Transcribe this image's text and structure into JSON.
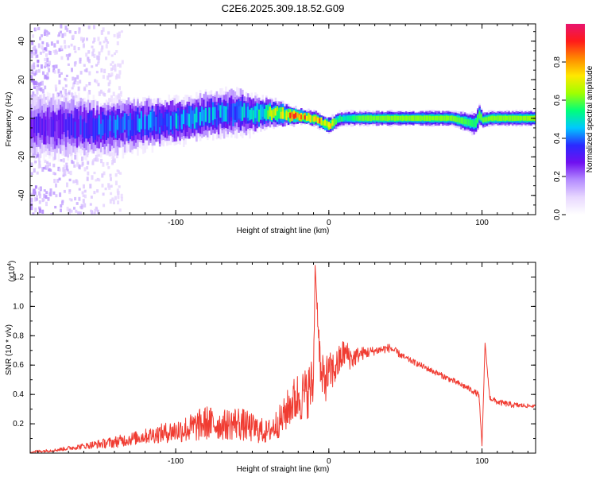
{
  "title": "C2E6.2025.309.18.52.G09",
  "colors": {
    "snr_line": "#f03c32",
    "colormap": [
      "#ffffff",
      "#e8d8ff",
      "#b48cff",
      "#7010f0",
      "#2a2aff",
      "#00c8ff",
      "#00ff7a",
      "#a0ff00",
      "#ffe800",
      "#ff8a00",
      "#ff1a1a",
      "#e8146e"
    ]
  },
  "chart_data": [
    {
      "type": "heatmap",
      "xlabel": "Height of straight line (km)",
      "ylabel": "Frequency (Hz)",
      "xlim": [
        -195,
        135
      ],
      "ylim": [
        -50,
        49
      ],
      "xticks": [
        -100,
        0,
        100
      ],
      "xtick_labels": [
        "-100",
        "0",
        "100"
      ],
      "yticks": [
        -40,
        -20,
        0,
        20,
        40
      ],
      "ytick_labels": [
        "-40",
        "-20",
        "0",
        "20",
        "40"
      ],
      "colorbar": {
        "label": "Normalized spectral amplitude",
        "range": [
          0,
          1
        ],
        "ticks": [
          0.0,
          0.2,
          0.4,
          0.6,
          0.8
        ],
        "tick_labels": [
          "0.0",
          "0.2",
          "0.4",
          "0.6",
          "0.8"
        ]
      },
      "ridge": {
        "x": [
          -185,
          -170,
          -150,
          -130,
          -110,
          -90,
          -75,
          -60,
          -50,
          -40,
          -30,
          -20,
          -10,
          -5,
          0,
          5,
          10,
          20,
          40,
          60,
          80,
          95,
          98,
          100,
          105,
          120,
          135
        ],
        "center_hz": [
          -4,
          -4,
          -5,
          -3,
          -2,
          0,
          2,
          3,
          2,
          3,
          2,
          1,
          0,
          -2,
          -4,
          -1,
          0,
          0,
          0,
          0,
          0,
          -3,
          2,
          -1,
          0,
          0,
          0
        ],
        "peak_amplitude": [
          0.3,
          0.35,
          0.4,
          0.42,
          0.45,
          0.45,
          0.45,
          0.45,
          0.5,
          0.6,
          0.75,
          0.92,
          0.75,
          0.8,
          0.85,
          0.55,
          0.5,
          0.6,
          0.62,
          0.62,
          0.62,
          0.55,
          0.6,
          0.6,
          0.62,
          0.62,
          0.64
        ],
        "spread_hz": [
          8,
          8,
          7,
          7,
          6,
          6,
          6,
          6,
          5,
          4,
          3,
          2,
          2,
          2,
          2,
          2,
          2,
          2,
          2,
          2,
          2,
          3,
          3,
          2,
          2,
          2,
          2
        ],
        "noise_extent_x": [
          -195,
          -135
        ]
      }
    },
    {
      "type": "line",
      "xlabel": "Height of straight line (km)",
      "ylabel": "SNR (10 * v/v)",
      "multiplier_label": "(x10",
      "multiplier_exponent": "4",
      "multiplier_close": ")",
      "xlim": [
        -195,
        135
      ],
      "ylim": [
        0,
        1.3
      ],
      "xticks": [
        -100,
        0,
        100
      ],
      "xtick_labels": [
        "-100",
        "0",
        "100"
      ],
      "yticks": [
        0.2,
        0.4,
        0.6,
        0.8,
        1.0,
        1.2
      ],
      "ytick_labels": [
        "0.2",
        "0.4",
        "0.6",
        "0.8",
        "1.0",
        "1.2"
      ],
      "series": [
        {
          "x": [
            -195,
            -180,
            -160,
            -140,
            -120,
            -100,
            -90,
            -80,
            -70,
            -60,
            -50,
            -40,
            -30,
            -25,
            -20,
            -15,
            -10,
            -9,
            -5,
            0,
            5,
            10,
            15,
            20,
            30,
            40,
            50,
            60,
            70,
            80,
            90,
            98,
            100,
            102,
            105,
            110,
            120,
            135
          ],
          "y": [
            0.01,
            0.02,
            0.05,
            0.08,
            0.12,
            0.16,
            0.18,
            0.22,
            0.2,
            0.22,
            0.18,
            0.15,
            0.25,
            0.35,
            0.4,
            0.42,
            0.5,
            1.28,
            0.5,
            0.55,
            0.6,
            0.7,
            0.65,
            0.68,
            0.7,
            0.72,
            0.65,
            0.6,
            0.55,
            0.5,
            0.45,
            0.4,
            0.05,
            0.75,
            0.38,
            0.35,
            0.33,
            0.32
          ],
          "noise_amplitude": [
            0.01,
            0.01,
            0.02,
            0.04,
            0.05,
            0.08,
            0.1,
            0.12,
            0.1,
            0.12,
            0.1,
            0.08,
            0.12,
            0.15,
            0.18,
            0.18,
            0.2,
            0.0,
            0.18,
            0.15,
            0.12,
            0.1,
            0.08,
            0.05,
            0.03,
            0.03,
            0.02,
            0.02,
            0.02,
            0.02,
            0.02,
            0.02,
            0.0,
            0.0,
            0.02,
            0.02,
            0.02,
            0.01
          ]
        }
      ]
    }
  ]
}
